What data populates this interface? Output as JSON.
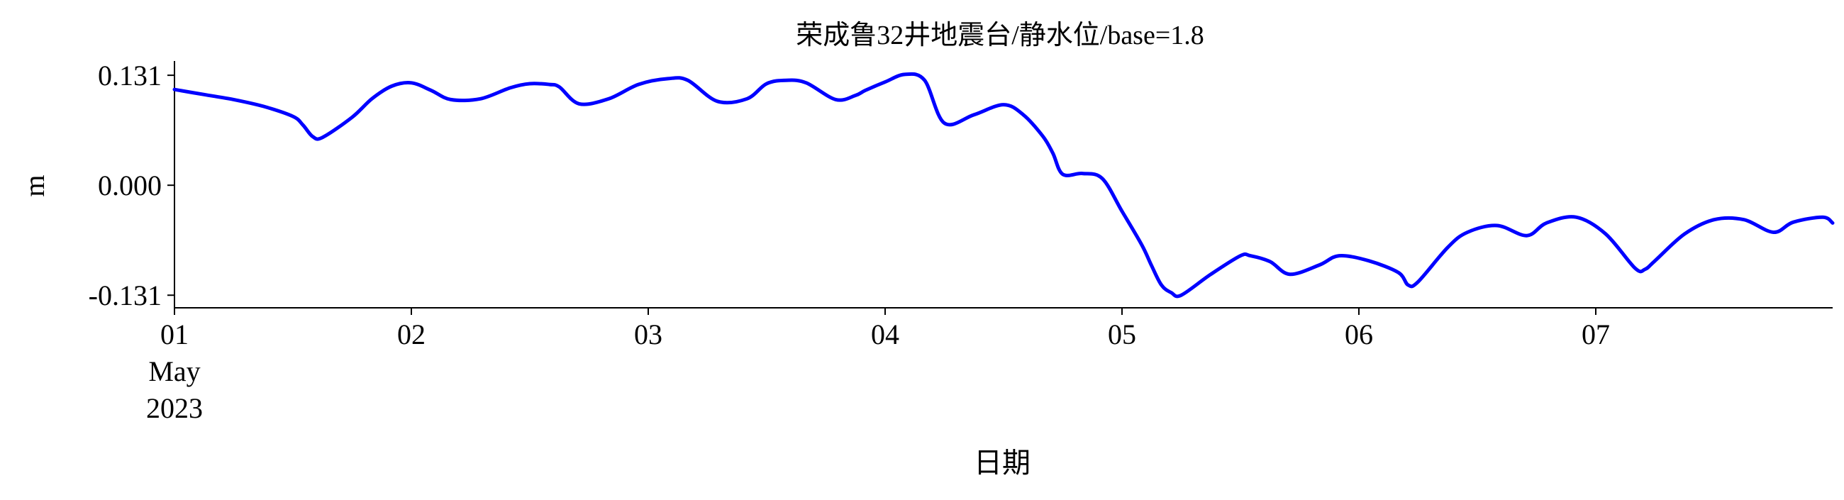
{
  "chart_data": {
    "type": "line",
    "title": "荣成鲁32井地震台/静水位/base=1.8",
    "xlabel": "日期",
    "ylabel": "m",
    "x_unit": "datetime",
    "xlim": [
      "2023-05-01 00:00",
      "2023-05-08 00:00"
    ],
    "ylim": [
      -0.146,
      0.148
    ],
    "y_ticks": [
      0.131,
      0.0,
      -0.131
    ],
    "y_tick_labels": [
      "0.131",
      "0.000",
      "-0.131"
    ],
    "x_ticks": [
      "2023-05-01",
      "2023-05-02",
      "2023-05-03",
      "2023-05-04",
      "2023-05-05",
      "2023-05-06",
      "2023-05-07"
    ],
    "x_tick_labels": [
      "01",
      "02",
      "03",
      "04",
      "05",
      "06",
      "07"
    ],
    "x_tick_sublabels": [
      "May",
      "2023"
    ],
    "grid": false,
    "line_color": "#0000ff",
    "series": [
      {
        "x": [
          "2023-05-01 00:00",
          "2023-05-01 03:00",
          "2023-05-01 06:00",
          "2023-05-01 09:00",
          "2023-05-01 12:00",
          "2023-05-01 13:00",
          "2023-05-01 14:00",
          "2023-05-01 15:00",
          "2023-05-01 18:00",
          "2023-05-01 20:00",
          "2023-05-01 22:00",
          "2023-05-02 00:00",
          "2023-05-02 02:00",
          "2023-05-02 04:00",
          "2023-05-02 07:00",
          "2023-05-02 10:00",
          "2023-05-02 12:00",
          "2023-05-02 14:00",
          "2023-05-02 15:00",
          "2023-05-02 17:00",
          "2023-05-02 20:00",
          "2023-05-02 23:00",
          "2023-05-03 02:00",
          "2023-05-03 04:00",
          "2023-05-03 07:00",
          "2023-05-03 10:00",
          "2023-05-03 12:00",
          "2023-05-03 14:00",
          "2023-05-03 16:00",
          "2023-05-03 19:00",
          "2023-05-03 21:00",
          "2023-05-03 22:00",
          "2023-05-04 00:00",
          "2023-05-04 02:00",
          "2023-05-04 04:00",
          "2023-05-04 06:00",
          "2023-05-04 09:00",
          "2023-05-04 12:00",
          "2023-05-04 14:00",
          "2023-05-04 16:00",
          "2023-05-04 17:00",
          "2023-05-04 18:00",
          "2023-05-04 20:00",
          "2023-05-04 22:00",
          "2023-05-05 00:00",
          "2023-05-05 02:00",
          "2023-05-05 03:00",
          "2023-05-05 04:00",
          "2023-05-05 05:00",
          "2023-05-05 06:00",
          "2023-05-05 09:00",
          "2023-05-05 12:00",
          "2023-05-05 13:00",
          "2023-05-05 15:00",
          "2023-05-05 17:00",
          "2023-05-05 20:00",
          "2023-05-05 22:00",
          "2023-05-06 01:00",
          "2023-05-06 04:00",
          "2023-05-06 05:00",
          "2023-05-06 06:00",
          "2023-05-06 09:00",
          "2023-05-06 11:00",
          "2023-05-06 14:00",
          "2023-05-06 17:00",
          "2023-05-06 19:00",
          "2023-05-06 22:00",
          "2023-05-07 01:00",
          "2023-05-07 04:00",
          "2023-05-07 05:00",
          "2023-05-07 06:00",
          "2023-05-07 09:00",
          "2023-05-07 12:00",
          "2023-05-07 15:00",
          "2023-05-07 18:00",
          "2023-05-07 20:00",
          "2023-05-07 23:00",
          "2023-05-08 00:00"
        ],
        "y": [
          0.114,
          0.108,
          0.102,
          0.094,
          0.082,
          0.072,
          0.058,
          0.057,
          0.081,
          0.103,
          0.118,
          0.122,
          0.113,
          0.102,
          0.103,
          0.116,
          0.121,
          0.12,
          0.117,
          0.097,
          0.103,
          0.12,
          0.127,
          0.125,
          0.1,
          0.103,
          0.121,
          0.125,
          0.122,
          0.102,
          0.107,
          0.113,
          0.123,
          0.132,
          0.125,
          0.074,
          0.084,
          0.096,
          0.084,
          0.058,
          0.038,
          0.013,
          0.014,
          0.008,
          -0.031,
          -0.071,
          -0.096,
          -0.119,
          -0.128,
          -0.131,
          -0.106,
          -0.084,
          -0.084,
          -0.091,
          -0.106,
          -0.095,
          -0.084,
          -0.09,
          -0.104,
          -0.119,
          -0.115,
          -0.074,
          -0.056,
          -0.048,
          -0.06,
          -0.045,
          -0.038,
          -0.058,
          -0.099,
          -0.1,
          -0.09,
          -0.058,
          -0.041,
          -0.041,
          -0.056,
          -0.044,
          -0.038,
          -0.045
        ]
      }
    ]
  }
}
